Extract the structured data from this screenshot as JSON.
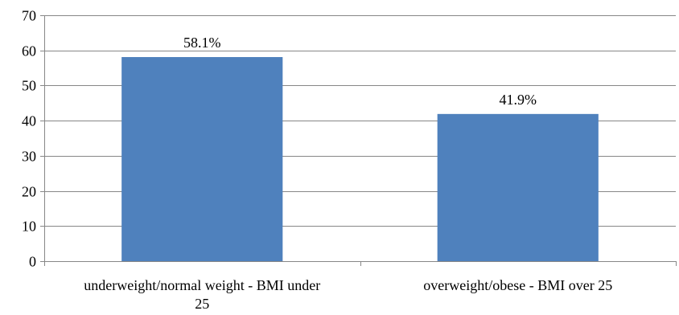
{
  "chart_data": {
    "type": "bar",
    "categories": [
      [
        "underweight/normal weight - BMI under",
        "25"
      ],
      [
        "overweight/obese - BMI over 25"
      ]
    ],
    "values": [
      58.1,
      41.9
    ],
    "data_labels": [
      "58.1%",
      "41.9%"
    ],
    "ylim": [
      0,
      70
    ],
    "yticks": [
      0,
      10,
      20,
      30,
      40,
      50,
      60,
      70
    ],
    "grid": true,
    "legend": "none",
    "colors": {
      "bar": "#4F81BD",
      "grid": "#878787",
      "axis": "#878787"
    },
    "title": "",
    "xlabel": "",
    "ylabel": ""
  }
}
